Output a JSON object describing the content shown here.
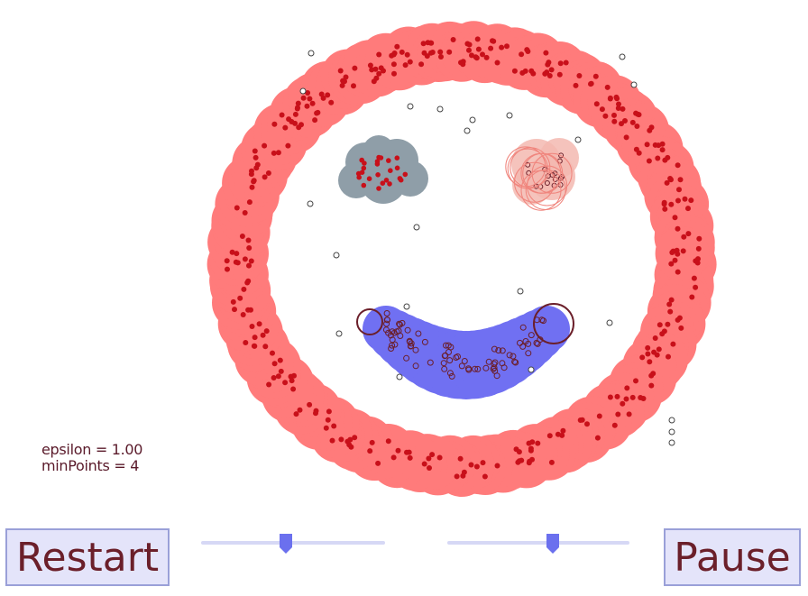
{
  "params": {
    "epsilon_text": "epsilon = 1.00",
    "minpoints_text": "minPoints = 4"
  },
  "controls": {
    "restart_label": "Restart",
    "pause_label": "Pause",
    "epsilon_slider_fraction": 0.46,
    "minpoints_slider_fraction": 0.58
  },
  "colors": {
    "ring_cluster": "#ff7b7b",
    "left_eye_cluster": "#8f9ea8",
    "right_eye_cluster": "#f3b8b0",
    "mouth_cluster": "#7070f2",
    "core_point": "#c8101a",
    "border_point_outline": "#6b1f2a",
    "slider_thumb": "#6b70ee",
    "slider_track": "#d6d8f5"
  }
}
